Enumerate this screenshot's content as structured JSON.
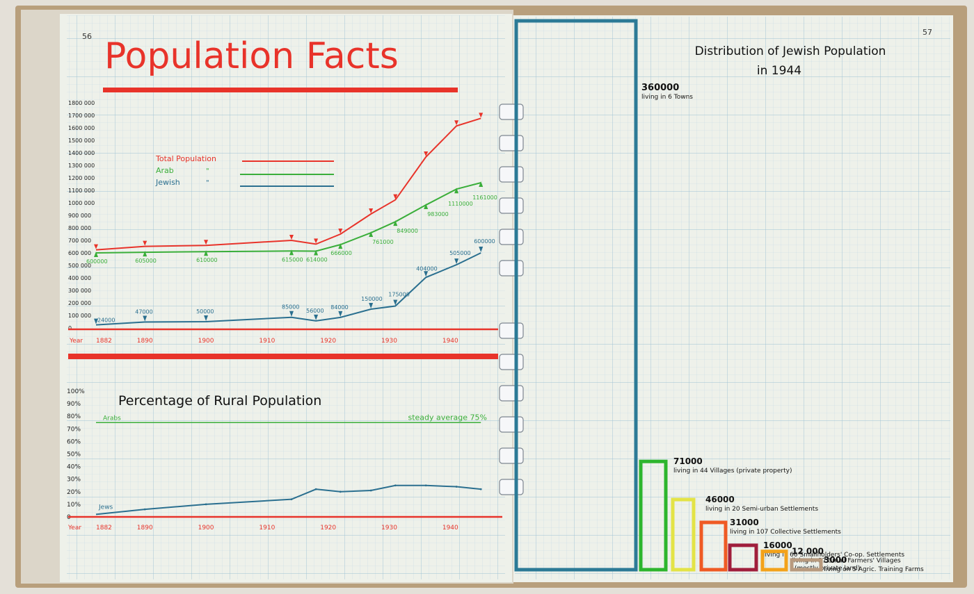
{
  "pages": {
    "left_number": "56",
    "right_number": "57"
  },
  "title": "Population Facts",
  "colors": {
    "paper": "#eef1ea",
    "grid": "#a9c9d9",
    "red": "#e8332a",
    "green": "#3aae3a",
    "blue": "#2a6f8f"
  },
  "chart_data": [
    {
      "type": "line",
      "title": "",
      "xlabel": "Year",
      "x_ticks": [
        "1882",
        "1890",
        "1900",
        "1910",
        "1920",
        "1930",
        "1940"
      ],
      "x_tick_values": [
        1882,
        1890,
        1900,
        1910,
        1920,
        1930,
        1940
      ],
      "y_ticks": [
        "1800 000",
        "1700 000",
        "1600 000",
        "1500 000",
        "1400 000",
        "1300 000",
        "1200 000",
        "1100 000",
        "1000 000",
        "900 000",
        "800 000",
        "700 000",
        "600 000",
        "500 000",
        "400 000",
        "300 000",
        "200 000",
        "100 000",
        "0"
      ],
      "y_tick_values": [
        1800000,
        1700000,
        1600000,
        1500000,
        1400000,
        1300000,
        1200000,
        1100000,
        1000000,
        900000,
        800000,
        700000,
        600000,
        500000,
        400000,
        300000,
        200000,
        100000,
        0
      ],
      "ylim": [
        0,
        1800000
      ],
      "xlim": [
        1882,
        1946
      ],
      "legend": [
        {
          "label": "Total Population",
          "color": "#e8332a"
        },
        {
          "label": "Arab",
          "color": "#3aae3a"
        },
        {
          "label": "Jewish",
          "color": "#2a6f8f"
        }
      ],
      "ditto_marks": [
        "\"",
        "\""
      ],
      "series": [
        {
          "name": "Total Population",
          "color": "#e8332a",
          "x": [
            1882,
            1890,
            1900,
            1914,
            1918,
            1922,
            1927,
            1931,
            1936,
            1941,
            1945
          ],
          "y": [
            624000,
            652000,
            660000,
            700000,
            670000,
            750000,
            911000,
            1024000,
            1367000,
            1615000,
            1676000
          ]
        },
        {
          "name": "Arab",
          "color": "#3aae3a",
          "x": [
            1882,
            1890,
            1900,
            1914,
            1918,
            1922,
            1927,
            1931,
            1936,
            1941,
            1945
          ],
          "y": [
            600000,
            605000,
            610000,
            615000,
            614000,
            666000,
            761000,
            849000,
            983000,
            1110000,
            1161000
          ],
          "labels": [
            "600000",
            "605000",
            "610000",
            "615000",
            "614000",
            "666000",
            "761000",
            "849000",
            "983000",
            "1110000",
            "1161000"
          ]
        },
        {
          "name": "Jewish",
          "color": "#2a6f8f",
          "x": [
            1882,
            1890,
            1900,
            1914,
            1918,
            1922,
            1927,
            1931,
            1936,
            1941,
            1945
          ],
          "y": [
            24000,
            47000,
            50000,
            85000,
            56000,
            84000,
            150000,
            175000,
            404000,
            505000,
            600000
          ],
          "labels": [
            "24000",
            "47000",
            "50000",
            "85000",
            "56000",
            "84000",
            "150000",
            "175000",
            "404000",
            "505000",
            "600000"
          ]
        }
      ]
    },
    {
      "type": "line",
      "title": "Percentage of Rural Population",
      "xlabel": "Year",
      "x_ticks": [
        "1882",
        "1890",
        "1900",
        "1910",
        "1920",
        "1930",
        "1940"
      ],
      "x_tick_values": [
        1882,
        1890,
        1900,
        1910,
        1920,
        1930,
        1940
      ],
      "y_ticks": [
        "100%",
        "90%",
        "80%",
        "70%",
        "60%",
        "50%",
        "40%",
        "30%",
        "20%",
        "10%",
        "0"
      ],
      "y_tick_values": [
        100,
        90,
        80,
        70,
        60,
        50,
        40,
        30,
        20,
        10,
        0
      ],
      "ylim": [
        0,
        100
      ],
      "xlim": [
        1882,
        1946
      ],
      "series": [
        {
          "name": "Arabs",
          "color": "#3aae3a",
          "x": [
            1882,
            1945
          ],
          "y": [
            75,
            75
          ],
          "annotation": "steady average 75%"
        },
        {
          "name": "Jews",
          "color": "#2a6f8f",
          "x": [
            1882,
            1890,
            1900,
            1914,
            1918,
            1922,
            1927,
            1931,
            1936,
            1941,
            1945
          ],
          "y": [
            2,
            6,
            10,
            14,
            22,
            20,
            21,
            25,
            25,
            24,
            22
          ]
        }
      ]
    },
    {
      "type": "bar",
      "title": "Distribution of Jewish Population in 1944",
      "categories": [
        "living in 6 Towns",
        "living in 44 Villages (private property)",
        "living in 20 Semi-urban Settlements",
        "living in 107 Collective Settlements",
        "living in 60 Smallholders' Co-op. Settlements",
        "living in 37 Small Farmers' Villages (mostly private land)",
        "living on 5 Agric. Training Farms"
      ],
      "values": [
        360000,
        71000,
        46000,
        31000,
        16000,
        12000,
        3000
      ],
      "value_labels": [
        "360000",
        "71000",
        "46000",
        "31000",
        "16000",
        "12 000",
        "3000"
      ],
      "colors": [
        "#2c7a96",
        "#2db52d",
        "#e3e346",
        "#ef5a24",
        "#a01e3c",
        "#f3a21a",
        "#b89a7e"
      ]
    }
  ]
}
